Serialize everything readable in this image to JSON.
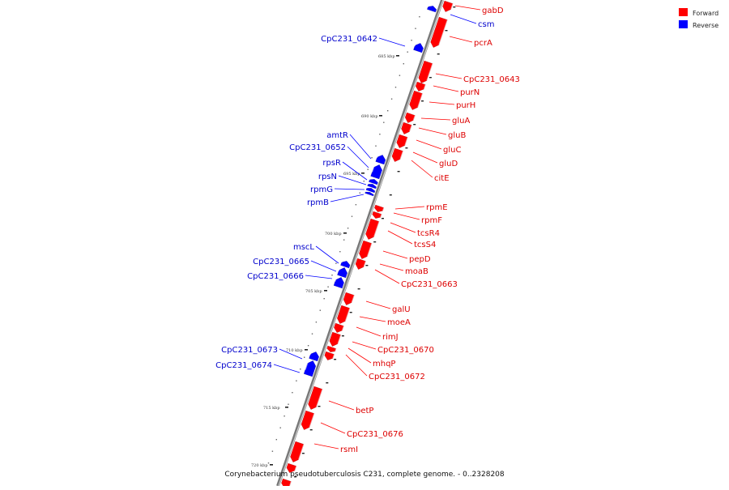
{
  "legend": [
    {
      "label": "Forward",
      "color": "#ff0000"
    },
    {
      "label": "Reverse",
      "color": "#0000ff"
    }
  ],
  "caption": "Corynebacterium pseudotuberculosis C231, complete genome. - 0..2328208",
  "colors": {
    "forward": "#ff0000",
    "reverse": "#0000ff",
    "backbone": "#999999"
  },
  "ticks": [
    "685 kbp",
    "690 kbp",
    "695 kbp",
    "700 kbp",
    "705 kbp",
    "710 kbp",
    "715 kbp",
    "720 kbp"
  ],
  "genes_forward": [
    "gabD",
    "pcrA",
    "CpC231_0643",
    "purN",
    "purH",
    "gluA",
    "gluB",
    "gluC",
    "gluD",
    "citE",
    "rpmE",
    "rpmF",
    "tcsR4",
    "tcsS4",
    "pepD",
    "moaB",
    "CpC231_0663",
    "galU",
    "moeA",
    "rimJ",
    "CpC231_0670",
    "mhqP",
    "CpC231_0672",
    "betP",
    "CpC231_0676",
    "rsmI"
  ],
  "genes_reverse": [
    "csm",
    "CpC231_0642",
    "amtR",
    "CpC231_0652",
    "rpsR",
    "rpsN",
    "rpmG",
    "rpmB",
    "mscL",
    "CpC231_0665",
    "CpC231_0666",
    "CpC231_0673",
    "CpC231_0674"
  ]
}
